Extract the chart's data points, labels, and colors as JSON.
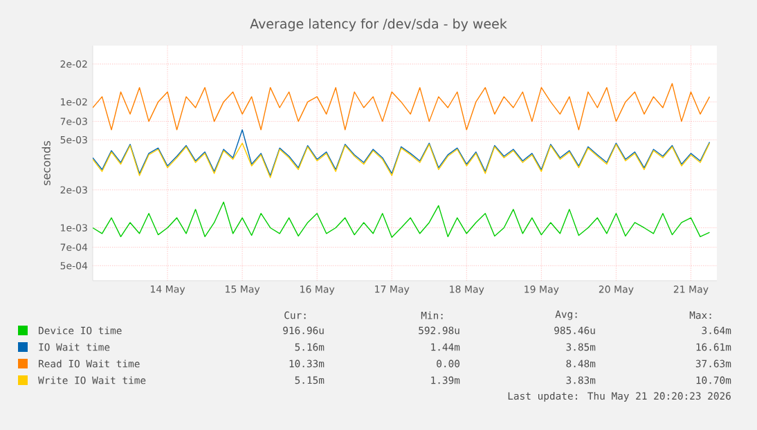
{
  "chart_data": {
    "type": "line",
    "title": "Average latency for /dev/sda - by week",
    "ylabel": "seconds",
    "log": "y",
    "grid": true,
    "legend": "bottom",
    "xlim": [
      "2026-05-13T12:00",
      "2026-05-21T20:20"
    ],
    "xticks": [
      {
        "value": "2026-05-14T12:00",
        "label": "14 May"
      },
      {
        "value": "2026-05-15T12:00",
        "label": "15 May"
      },
      {
        "value": "2026-05-16T12:00",
        "label": "16 May"
      },
      {
        "value": "2026-05-17T12:00",
        "label": "17 May"
      },
      {
        "value": "2026-05-18T12:00",
        "label": "18 May"
      },
      {
        "value": "2026-05-19T12:00",
        "label": "19 May"
      },
      {
        "value": "2026-05-20T12:00",
        "label": "20 May"
      },
      {
        "value": "2026-05-21T12:00",
        "label": "21 May"
      }
    ],
    "ylim": [
      0.00038,
      0.028
    ],
    "yticks": [
      {
        "value": 0.0005,
        "label": "5e-04"
      },
      {
        "value": 0.0007,
        "label": "7e-04"
      },
      {
        "value": 0.001,
        "label": "1e-03"
      },
      {
        "value": 0.002,
        "label": "2e-03"
      },
      {
        "value": 0.005,
        "label": "5e-03"
      },
      {
        "value": 0.007,
        "label": "7e-03"
      },
      {
        "value": 0.01,
        "label": "1e-02"
      },
      {
        "value": 0.02,
        "label": "2e-02"
      }
    ],
    "x": [
      "2026-05-13T12:00",
      "2026-05-13T15:00",
      "2026-05-13T18:00",
      "2026-05-13T21:00",
      "2026-05-14T00:00",
      "2026-05-14T03:00",
      "2026-05-14T06:00",
      "2026-05-14T09:00",
      "2026-05-14T12:00",
      "2026-05-14T15:00",
      "2026-05-14T18:00",
      "2026-05-14T21:00",
      "2026-05-15T00:00",
      "2026-05-15T03:00",
      "2026-05-15T06:00",
      "2026-05-15T09:00",
      "2026-05-15T12:00",
      "2026-05-15T15:00",
      "2026-05-15T18:00",
      "2026-05-15T21:00",
      "2026-05-16T00:00",
      "2026-05-16T03:00",
      "2026-05-16T06:00",
      "2026-05-16T09:00",
      "2026-05-16T12:00",
      "2026-05-16T15:00",
      "2026-05-16T18:00",
      "2026-05-16T21:00",
      "2026-05-17T00:00",
      "2026-05-17T03:00",
      "2026-05-17T06:00",
      "2026-05-17T09:00",
      "2026-05-17T12:00",
      "2026-05-17T15:00",
      "2026-05-17T18:00",
      "2026-05-17T21:00",
      "2026-05-18T00:00",
      "2026-05-18T03:00",
      "2026-05-18T06:00",
      "2026-05-18T09:00",
      "2026-05-18T12:00",
      "2026-05-18T15:00",
      "2026-05-18T18:00",
      "2026-05-18T21:00",
      "2026-05-19T00:00",
      "2026-05-19T03:00",
      "2026-05-19T06:00",
      "2026-05-19T09:00",
      "2026-05-19T12:00",
      "2026-05-19T15:00",
      "2026-05-19T18:00",
      "2026-05-19T21:00",
      "2026-05-20T00:00",
      "2026-05-20T03:00",
      "2026-05-20T06:00",
      "2026-05-20T09:00",
      "2026-05-20T12:00",
      "2026-05-20T15:00",
      "2026-05-20T18:00",
      "2026-05-20T21:00",
      "2026-05-21T00:00",
      "2026-05-21T03:00",
      "2026-05-21T06:00",
      "2026-05-21T09:00",
      "2026-05-21T12:00",
      "2026-05-21T15:00",
      "2026-05-21T18:00"
    ],
    "series": [
      {
        "name": "Device IO time",
        "color": "#00cc00",
        "values": [
          0.001,
          0.0009,
          0.0012,
          0.00085,
          0.0011,
          0.0009,
          0.0013,
          0.00088,
          0.001,
          0.0012,
          0.0009,
          0.0014,
          0.00085,
          0.0011,
          0.0016,
          0.0009,
          0.0012,
          0.00087,
          0.0013,
          0.001,
          0.0009,
          0.0012,
          0.00086,
          0.0011,
          0.0013,
          0.0009,
          0.001,
          0.0012,
          0.00088,
          0.0011,
          0.0009,
          0.0013,
          0.00084,
          0.001,
          0.0012,
          0.0009,
          0.0011,
          0.0015,
          0.00085,
          0.0012,
          0.0009,
          0.0011,
          0.0013,
          0.00086,
          0.001,
          0.0014,
          0.0009,
          0.0012,
          0.00088,
          0.0011,
          0.0009,
          0.0014,
          0.00087,
          0.001,
          0.0012,
          0.0009,
          0.0013,
          0.00086,
          0.0011,
          0.001,
          0.0009,
          0.0013,
          0.00088,
          0.0011,
          0.0012,
          0.00085,
          0.00092
        ]
      },
      {
        "name": "IO Wait time",
        "color": "#0066b3",
        "values": [
          0.0036,
          0.0029,
          0.0041,
          0.0033,
          0.0046,
          0.0027,
          0.0039,
          0.0043,
          0.0031,
          0.0037,
          0.0045,
          0.0034,
          0.004,
          0.0028,
          0.0042,
          0.0036,
          0.006,
          0.0032,
          0.0039,
          0.0026,
          0.0043,
          0.0037,
          0.003,
          0.0045,
          0.0035,
          0.004,
          0.0029,
          0.0046,
          0.0038,
          0.0033,
          0.0042,
          0.0036,
          0.0027,
          0.0044,
          0.0039,
          0.0034,
          0.0047,
          0.003,
          0.0038,
          0.0043,
          0.0032,
          0.004,
          0.0028,
          0.0045,
          0.0037,
          0.0042,
          0.0034,
          0.0039,
          0.0029,
          0.0046,
          0.0036,
          0.0041,
          0.0031,
          0.0044,
          0.0038,
          0.0033,
          0.0047,
          0.0035,
          0.004,
          0.003,
          0.0042,
          0.0037,
          0.0045,
          0.0032,
          0.0039,
          0.0034,
          0.0048
        ]
      },
      {
        "name": "Read IO Wait time",
        "color": "#ff8000",
        "values": [
          0.009,
          0.011,
          0.006,
          0.012,
          0.008,
          0.013,
          0.007,
          0.01,
          0.012,
          0.006,
          0.011,
          0.009,
          0.013,
          0.007,
          0.01,
          0.012,
          0.008,
          0.011,
          0.006,
          0.013,
          0.009,
          0.012,
          0.007,
          0.01,
          0.011,
          0.008,
          0.013,
          0.006,
          0.012,
          0.009,
          0.011,
          0.007,
          0.012,
          0.01,
          0.008,
          0.013,
          0.007,
          0.011,
          0.009,
          0.012,
          0.006,
          0.01,
          0.013,
          0.008,
          0.011,
          0.009,
          0.012,
          0.007,
          0.013,
          0.01,
          0.008,
          0.011,
          0.006,
          0.012,
          0.009,
          0.013,
          0.007,
          0.01,
          0.012,
          0.008,
          0.011,
          0.009,
          0.014,
          0.007,
          0.012,
          0.008,
          0.011
        ]
      },
      {
        "name": "Write IO Wait time",
        "color": "#ffcc00",
        "values": [
          0.0035,
          0.0028,
          0.004,
          0.0032,
          0.0045,
          0.0026,
          0.0038,
          0.0042,
          0.003,
          0.0036,
          0.0044,
          0.0033,
          0.0039,
          0.0027,
          0.0041,
          0.0035,
          0.0047,
          0.0031,
          0.0038,
          0.0025,
          0.0042,
          0.0036,
          0.0029,
          0.0044,
          0.0034,
          0.0039,
          0.0028,
          0.0045,
          0.0037,
          0.0032,
          0.0041,
          0.0035,
          0.0026,
          0.0043,
          0.0038,
          0.0033,
          0.0046,
          0.0029,
          0.0037,
          0.0042,
          0.0031,
          0.0039,
          0.0027,
          0.0044,
          0.0036,
          0.0041,
          0.0033,
          0.0038,
          0.0028,
          0.0045,
          0.0035,
          0.004,
          0.003,
          0.0043,
          0.0037,
          0.0032,
          0.0046,
          0.0034,
          0.0039,
          0.0029,
          0.0041,
          0.0036,
          0.0044,
          0.0031,
          0.0038,
          0.0033,
          0.0047
        ]
      }
    ],
    "annotations": [
      "Cur:",
      "Min:",
      "Avg:",
      "Max:",
      "916.96u",
      "592.98u",
      "985.46u",
      "3.64m",
      "5.16m",
      "1.44m",
      "3.85m",
      "16.61m",
      "10.33m",
      "0.00",
      "8.48m",
      "37.63m",
      "5.15m",
      "1.39m",
      "3.83m",
      "10.70m",
      "Last update: Thu May 21 20:20:23 2026"
    ]
  }
}
